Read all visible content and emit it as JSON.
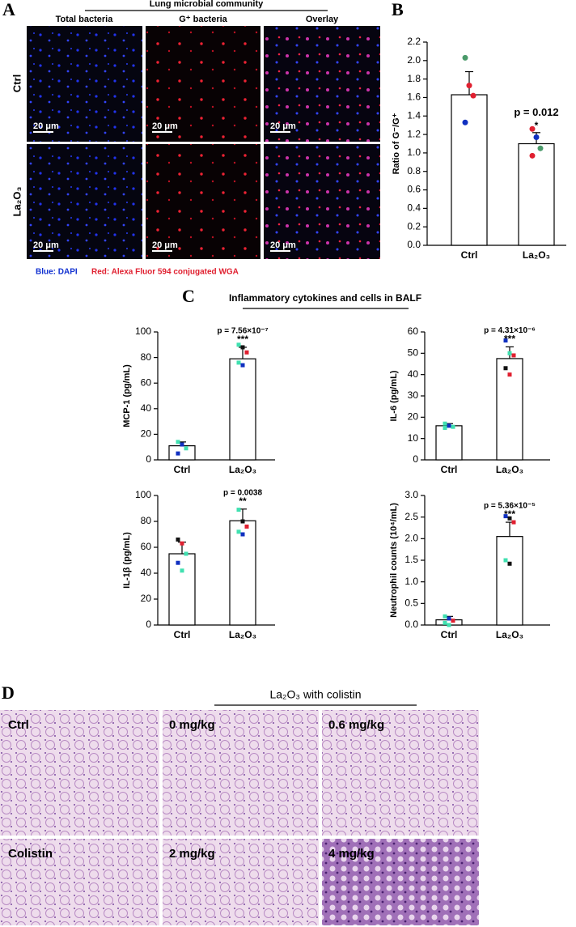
{
  "panel_letters": [
    "A",
    "B",
    "C",
    "D"
  ],
  "panel_a": {
    "title": "Lung microbial community",
    "columns": [
      "Total bacteria",
      "G⁺ bacteria",
      "Overlay"
    ],
    "rows": [
      "Ctrl",
      "La₂O₃"
    ],
    "scale_bars": [
      "20 μm",
      "20 μm",
      "20 μm",
      "20 μm",
      "20 μm",
      "20 μm"
    ],
    "legend": [
      "Blue: DAPI",
      "Red: Alexa Fluor 594 conjugated WGA"
    ]
  },
  "panel_c_title": "Inflammatory cytokines and cells in BALF",
  "panel_d": {
    "title": "La₂O₃ with colistin",
    "labels": [
      "Ctrl",
      "0 mg/kg",
      "0.6 mg/kg",
      "Colistin",
      "2 mg/kg",
      "4 mg/kg"
    ]
  },
  "chart_data": [
    {
      "type": "bar",
      "y_label": "Ratio of G⁻/G⁺",
      "categories": [
        "Ctrl",
        "La₂O₃"
      ],
      "values": [
        1.63,
        1.1
      ],
      "errors": [
        0.25,
        0.12
      ],
      "points": [
        [
          2.03,
          1.73,
          1.62,
          1.33
        ],
        [
          1.26,
          1.17,
          1.05,
          0.97
        ]
      ],
      "point_colors": [
        [
          "#4a9a6a",
          "#e02030",
          "#e02030",
          "#1030c0"
        ],
        [
          "#e02030",
          "#1030c0",
          "#4a9a6a",
          "#e02030"
        ]
      ],
      "marker": "circle",
      "p_value": "p = 0.012",
      "significance": "*",
      "ylim": [
        0,
        2.2
      ],
      "yticks": [
        {
          "value": 0,
          "label": "0.0"
        },
        0.2,
        0.4,
        0.6,
        0.8,
        {
          "value": 1,
          "label": "1.0"
        },
        1.2,
        1.4,
        1.6,
        1.8,
        {
          "value": 2,
          "label": "2.0"
        },
        2.2
      ]
    },
    {
      "type": "bar",
      "y_label": "MCP-1 (pg/mL)",
      "categories": [
        "Ctrl",
        "La₂O₃"
      ],
      "values": [
        11,
        79
      ],
      "errors": [
        3,
        9
      ],
      "points": [
        [
          14,
          12,
          9,
          5
        ],
        [
          90,
          88,
          84,
          76,
          74
        ]
      ],
      "point_colors": [
        [
          "#40e0b0",
          "#1030c0",
          "#40e0b0",
          "#1030c0"
        ],
        [
          "#40e0b0",
          "#111111",
          "#e02030",
          "#40e0b0",
          "#1030c0"
        ]
      ],
      "marker": "square",
      "p_value": "p = 7.56×10⁻⁷",
      "significance": "***",
      "ylim": [
        0,
        100
      ],
      "yticks": [
        0,
        20,
        40,
        60,
        80,
        100
      ]
    },
    {
      "type": "bar",
      "y_label": "IL-6 (pg/mL)",
      "categories": [
        "Ctrl",
        "La₂O₃"
      ],
      "values": [
        16,
        47.5
      ],
      "errors": [
        1,
        5.5
      ],
      "points": [
        [
          17,
          16,
          15.5,
          15
        ],
        [
          56,
          50,
          49,
          43,
          40
        ]
      ],
      "point_colors": [
        [
          "#40e0b0",
          "#1030c0",
          "#40e0b0",
          "#40e0b0"
        ],
        [
          "#1030c0",
          "#40e0b0",
          "#e02030",
          "#111111",
          "#e02030"
        ]
      ],
      "marker": "square",
      "p_value": "p = 4.31×10⁻⁶",
      "significance": "***",
      "ylim": [
        0,
        60
      ],
      "yticks": [
        0,
        10,
        20,
        30,
        40,
        50,
        60
      ]
    },
    {
      "type": "bar",
      "y_label": "IL-1β (pg/mL)",
      "categories": [
        "Ctrl",
        "La₂O₃"
      ],
      "values": [
        55,
        80.5
      ],
      "errors": [
        9,
        9
      ],
      "points": [
        [
          66,
          63,
          55,
          48,
          42
        ],
        [
          89,
          80,
          76,
          72,
          70
        ]
      ],
      "point_colors": [
        [
          "#111111",
          "#e02030",
          "#40e0b0",
          "#1030c0",
          "#40e0b0"
        ],
        [
          "#40e0b0",
          "#111111",
          "#e02030",
          "#40e0b0",
          "#1030c0"
        ]
      ],
      "marker": "square",
      "p_value": "p = 0.0038",
      "significance": "**",
      "ylim": [
        0,
        100
      ],
      "yticks": [
        0,
        20,
        40,
        60,
        80,
        100
      ]
    },
    {
      "type": "bar",
      "y_label": "Neutrophil counts (10⁴/mL)",
      "categories": [
        "Ctrl",
        "La₂O₃"
      ],
      "values": [
        0.12,
        2.05
      ],
      "errors": [
        0.08,
        0.33
      ],
      "points": [
        [
          0.2,
          0.15,
          0.1,
          0.05,
          0.0
        ],
        [
          2.52,
          2.47,
          2.38,
          1.5,
          1.42
        ]
      ],
      "point_colors": [
        [
          "#40e0b0",
          "#1030c0",
          "#e02030",
          "#40e0b0",
          "#40e0b0"
        ],
        [
          "#1030c0",
          "#111111",
          "#e02030",
          "#40e0b0",
          "#111111"
        ]
      ],
      "marker": "square",
      "p_value": "p = 5.36×10⁻⁵",
      "significance": "***",
      "ylim": [
        0,
        3
      ],
      "yticks": [
        {
          "value": 0,
          "label": "0.0"
        },
        0.5,
        {
          "value": 1,
          "label": "1.0"
        },
        1.5,
        {
          "value": 2,
          "label": "2.0"
        },
        2.5,
        {
          "value": 3,
          "label": "3.0"
        }
      ]
    }
  ]
}
